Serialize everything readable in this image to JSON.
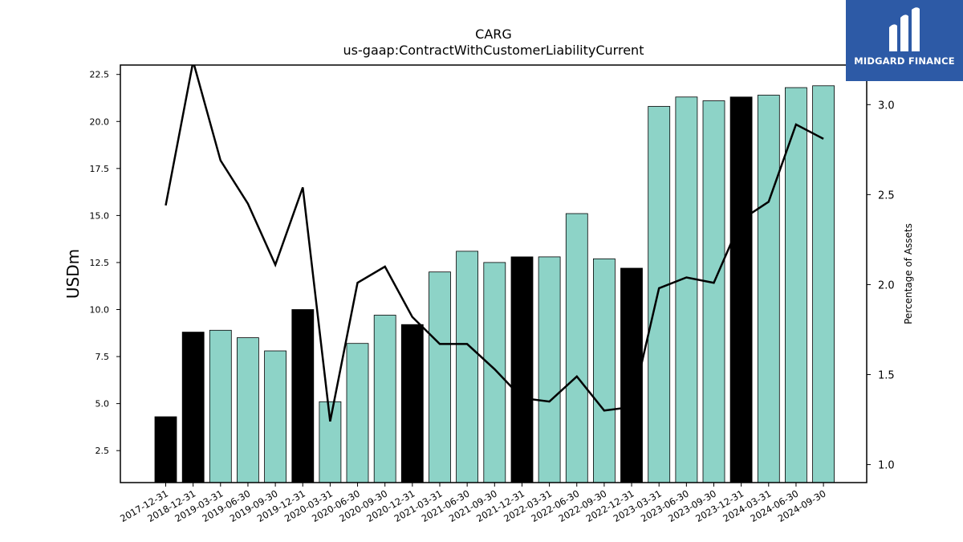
{
  "chart_data": {
    "type": "bar+line",
    "title": "CARG",
    "subtitle": "us-gaap:ContractWithCustomerLiabilityCurrent",
    "ylabel": "USDm",
    "y2label": "Percentage of Assets",
    "ylim": [
      0.8,
      23.0
    ],
    "y2lim": [
      0.9,
      3.22
    ],
    "yticks": [
      "2.5",
      "5.0",
      "7.5",
      "10.0",
      "12.5",
      "15.0",
      "17.5",
      "20.0",
      "22.5"
    ],
    "y2ticks": [
      "1.0",
      "1.5",
      "2.0",
      "2.5",
      "3.0"
    ],
    "categories": [
      "2017-12-31",
      "2018-12-31",
      "2019-03-31",
      "2019-06-30",
      "2019-09-30",
      "2019-12-31",
      "2020-03-31",
      "2020-06-30",
      "2020-09-30",
      "2020-12-31",
      "2021-03-31",
      "2021-06-30",
      "2021-09-30",
      "2021-12-31",
      "2022-03-31",
      "2022-06-30",
      "2022-09-30",
      "2022-12-31",
      "2023-03-31",
      "2023-06-30",
      "2023-09-30",
      "2023-12-31",
      "2024-03-31",
      "2024-06-30",
      "2024-09-30"
    ],
    "bar_values": [
      4.3,
      8.8,
      8.9,
      8.5,
      7.8,
      10.0,
      5.1,
      8.2,
      9.7,
      9.2,
      12.0,
      13.1,
      12.5,
      12.8,
      12.8,
      15.1,
      12.7,
      12.2,
      20.8,
      21.3,
      21.1,
      21.3,
      21.4,
      21.8,
      21.9
    ],
    "bar_annual": [
      true,
      true,
      false,
      false,
      false,
      true,
      false,
      false,
      false,
      true,
      false,
      false,
      false,
      true,
      false,
      false,
      false,
      true,
      false,
      false,
      false,
      true,
      false,
      false,
      false
    ],
    "line_values": [
      2.44,
      3.24,
      2.69,
      2.45,
      2.11,
      2.54,
      1.24,
      2.01,
      2.1,
      1.82,
      1.67,
      1.67,
      1.53,
      1.37,
      1.35,
      1.49,
      1.3,
      1.32,
      1.98,
      2.04,
      2.01,
      2.36,
      2.46,
      2.89,
      2.81
    ],
    "colors": {
      "annual_bar": "#000000",
      "quarter_bar": "#8dd3c7",
      "line": "#000000"
    },
    "grid": false
  },
  "logo": {
    "text": "MIDGARD FINANCE"
  }
}
